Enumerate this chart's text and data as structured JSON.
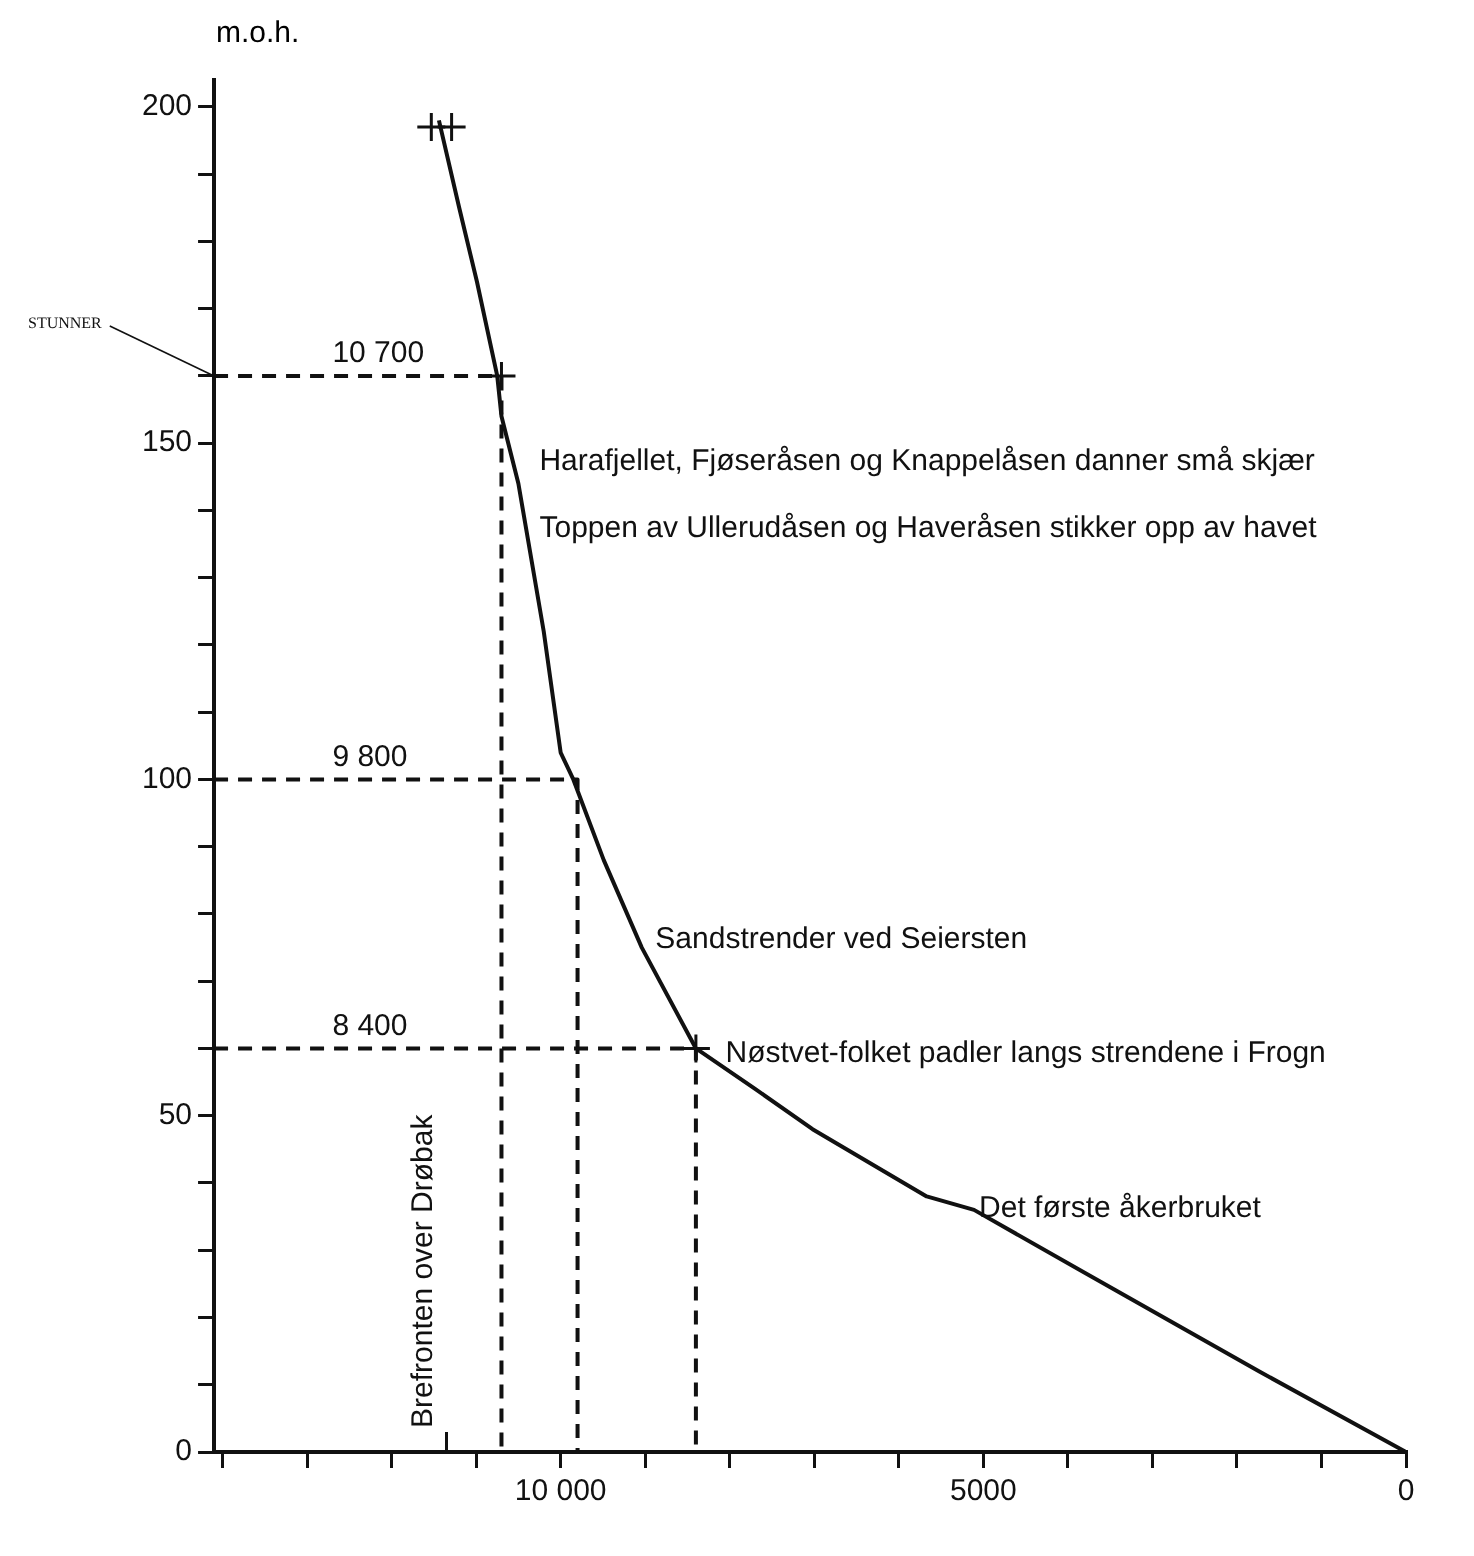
{
  "chart_data": {
    "type": "line",
    "ylabel": "m.o.h.",
    "xlim": [
      14100,
      0
    ],
    "xticks": [
      {
        "value": 14000,
        "label": null
      },
      {
        "value": 13000,
        "label": null
      },
      {
        "value": 12000,
        "label": null
      },
      {
        "value": 11000,
        "label": null
      },
      {
        "value": 10000,
        "label": "10 000"
      },
      {
        "value": 9000,
        "label": null
      },
      {
        "value": 8000,
        "label": null
      },
      {
        "value": 7000,
        "label": null
      },
      {
        "value": 6000,
        "label": null
      },
      5000,
      {
        "value": 4000,
        "label": null
      },
      {
        "value": 3000,
        "label": null
      },
      {
        "value": 2000,
        "label": null
      },
      {
        "value": 1000,
        "label": null
      },
      0
    ],
    "ylim": [
      0,
      204
    ],
    "yticks": [
      0,
      {
        "value": 10,
        "label": null
      },
      {
        "value": 20,
        "label": null
      },
      {
        "value": 30,
        "label": null
      },
      {
        "value": 40,
        "label": null
      },
      50,
      {
        "value": 60,
        "label": null
      },
      {
        "value": 70,
        "label": null
      },
      {
        "value": 80,
        "label": null
      },
      {
        "value": 90,
        "label": null
      },
      100,
      {
        "value": 110,
        "label": null
      },
      {
        "value": 120,
        "label": null
      },
      {
        "value": 130,
        "label": null
      },
      {
        "value": 140,
        "label": null
      },
      150,
      {
        "value": 160,
        "label": null
      },
      {
        "value": 170,
        "label": null
      },
      {
        "value": 180,
        "label": null
      },
      {
        "value": 190,
        "label": null
      },
      200
    ],
    "grid": false,
    "legend": false,
    "series": [
      {
        "color": "#111111",
        "line_style": "solid",
        "marker": "none",
        "x": [
          11440,
          11200,
          10990,
          10750,
          10700,
          10500,
          10200,
          10000,
          9850,
          9490,
          9040,
          8400,
          7700,
          7020,
          5670,
          5110,
          3430,
          1740,
          0
        ],
        "values": [
          198,
          185,
          174,
          160,
          154,
          144,
          122,
          104,
          100,
          88,
          75,
          60,
          54,
          48,
          38,
          36,
          24,
          12,
          0
        ]
      },
      {
        "type": "line",
        "color": "#111111",
        "line_style": "dashed",
        "marker": "none",
        "x": [
          14100,
          10700,
          10700
        ],
        "values": [
          160,
          160,
          0
        ]
      },
      {
        "type": "line",
        "color": "#111111",
        "line_style": "dashed",
        "marker": "none",
        "x": [
          14100,
          9800,
          9800
        ],
        "values": [
          100,
          100,
          0
        ]
      },
      {
        "type": "line",
        "color": "#111111",
        "line_style": "dashed",
        "marker": "none",
        "x": [
          14100,
          8400,
          8400
        ],
        "values": [
          60,
          60,
          0
        ]
      },
      {
        "type": "scatter",
        "color": "#111111",
        "marker": "cross",
        "x": [
          11530,
          11290,
          10700,
          8400
        ],
        "values": [
          197,
          197,
          160,
          60
        ]
      }
    ],
    "annotations": [
      "Brefronten over Drøbak",
      {
        "text": "STUNNER",
        "x": 14100,
        "y": 160
      },
      {
        "text": "10 700",
        "x": 12700,
        "y": 161
      },
      {
        "text": "9 800",
        "x": 12700,
        "y": 101
      },
      {
        "text": "8 400",
        "x": 12700,
        "y": 61
      },
      "Harafjellet, Fjøseråsen og Knappelåsen danner små skjær",
      "Toppen av Ullerudåsen og Haveråsen stikker opp av havet",
      {
        "text": "Sandstrender ved Seiersten",
        "x": 8880,
        "y": 74
      },
      {
        "text": "Nøstvet-folket padler langs strendene i Frogn",
        "x": 8050,
        "y": 57
      },
      {
        "text": "Det første åkerbruket",
        "x": 5050,
        "y": 34
      }
    ]
  }
}
